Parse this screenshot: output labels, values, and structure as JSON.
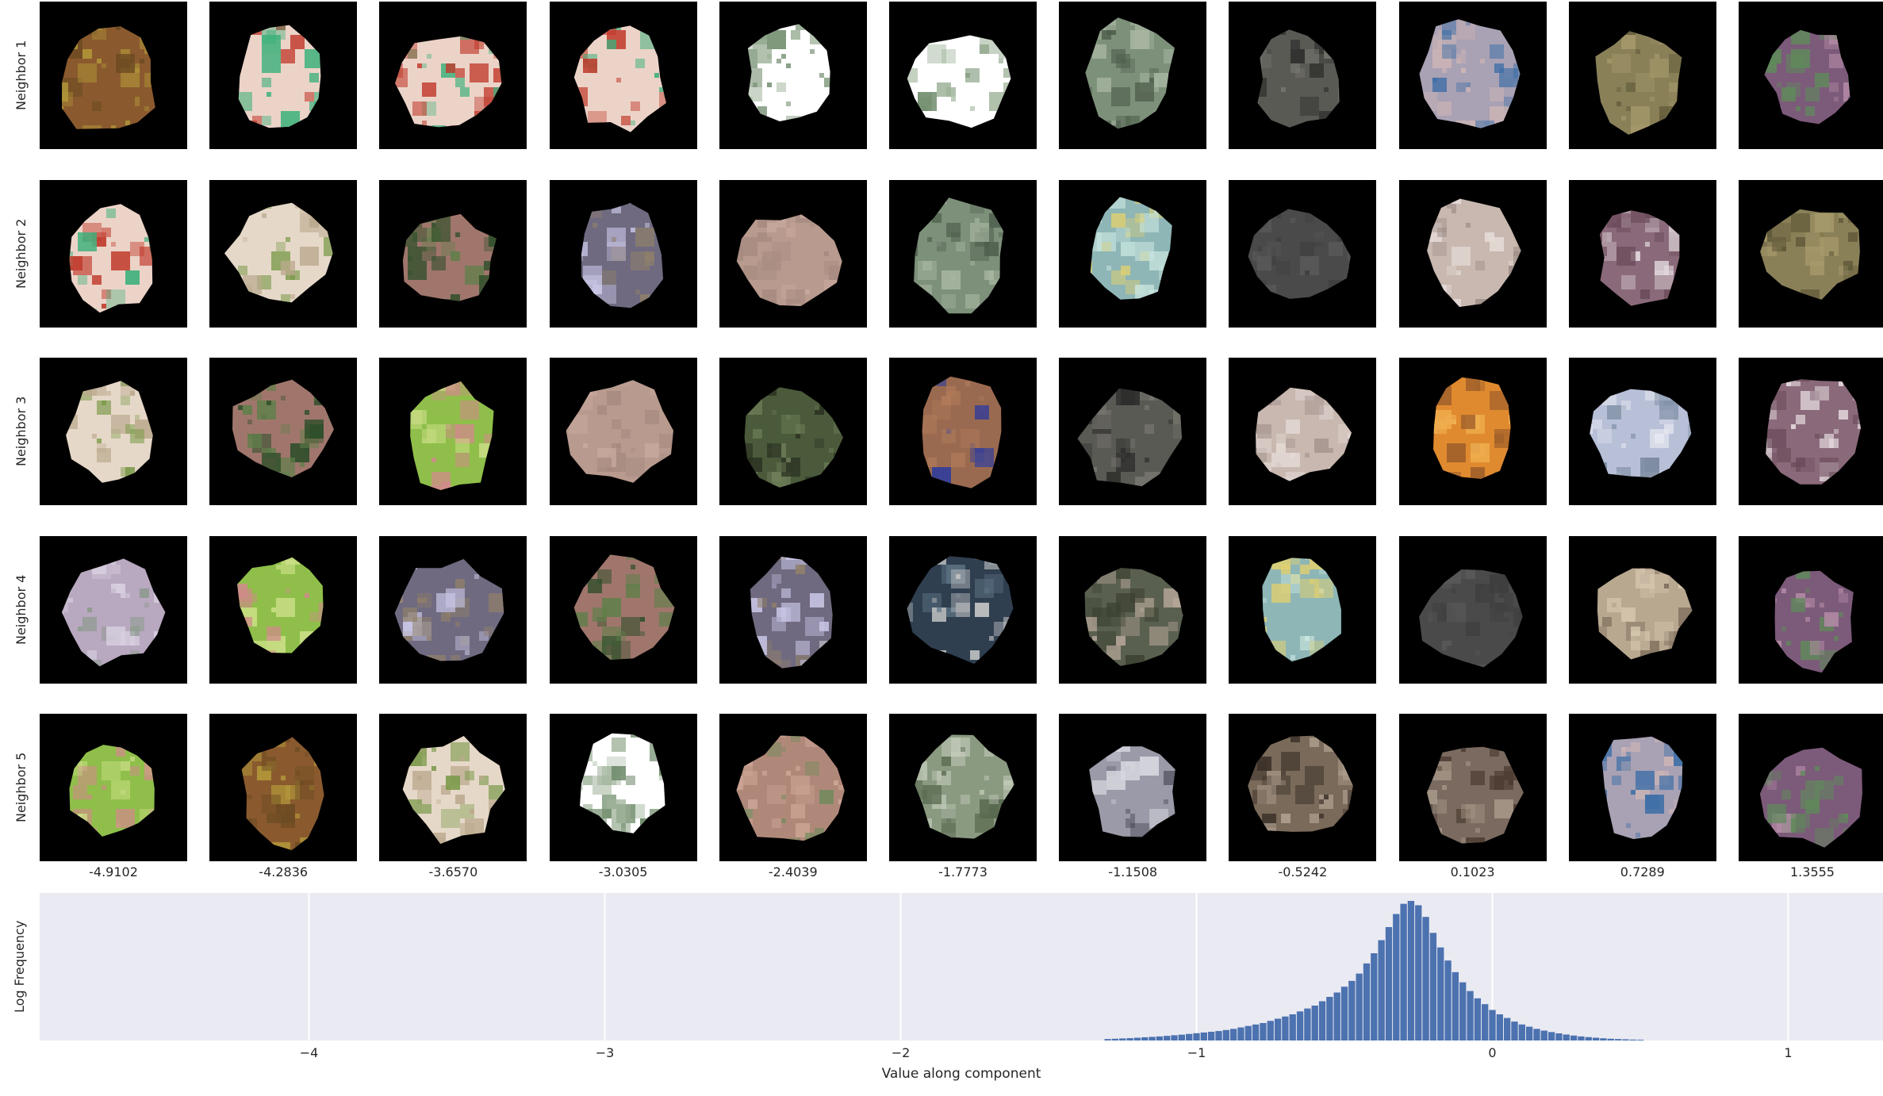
{
  "figure": {
    "row_labels": [
      "Neighbor 1",
      "Neighbor 2",
      "Neighbor 3",
      "Neighbor 4",
      "Neighbor 5"
    ],
    "column_values": [
      "-4.9102",
      "-4.2836",
      "-3.6570",
      "-3.0305",
      "-2.4039",
      "-1.7773",
      "-1.1508",
      "-0.5242",
      "0.1023",
      "0.7289",
      "1.3555"
    ],
    "tiles": [
      [
        {
          "content": "brown-yellow textured patch",
          "colors": [
            "#8a5a2e",
            "#b49a3a",
            "#6b4a22"
          ]
        },
        {
          "content": "pink cartoon figure with green",
          "colors": [
            "#ecd3c8",
            "#3bb07a",
            "#c0392b"
          ]
        },
        {
          "content": "pink cartoon figure with green",
          "colors": [
            "#ecd3c8",
            "#3bb07a",
            "#c0392b"
          ]
        },
        {
          "content": "pink cartoon figure with green",
          "colors": [
            "#ecd3c8",
            "#3bb07a",
            "#c0392b"
          ]
        },
        {
          "content": "white sky with tree branches",
          "colors": [
            "#ffffff",
            "#9fb39a",
            "#6e8a6a"
          ]
        },
        {
          "content": "white sky with tree branches",
          "colors": [
            "#ffffff",
            "#9fb39a",
            "#6e8a6a"
          ]
        },
        {
          "content": "green fence grid",
          "colors": [
            "#7d907a",
            "#a9b8a3",
            "#4e5e4c"
          ]
        },
        {
          "content": "dark gray surface",
          "colors": [
            "#5a5a55",
            "#77766f",
            "#2e2e2c"
          ]
        },
        {
          "content": "sky with clouds",
          "colors": [
            "#a9a1b4",
            "#d1b7b5",
            "#3f6fa6"
          ]
        },
        {
          "content": "olive textured patch",
          "colors": [
            "#8a8058",
            "#a69a6c",
            "#5f5838"
          ]
        },
        {
          "content": "purple-green foliage",
          "colors": [
            "#7c5a7a",
            "#5f8a5a",
            "#b38aa5"
          ]
        }
      ],
      [
        {
          "content": "pink cartoon figure with green",
          "colors": [
            "#ecd3c8",
            "#3bb07a",
            "#c0392b"
          ]
        },
        {
          "content": "pale foliage blur",
          "colors": [
            "#e6d8c8",
            "#7a9a4a",
            "#bba98e"
          ]
        },
        {
          "content": "pink and dark green leaves",
          "colors": [
            "#a0766c",
            "#2f4f2a",
            "#5f7f4a"
          ]
        },
        {
          "content": "bokeh lights on purple",
          "colors": [
            "#6f6a80",
            "#c9c6e6",
            "#8f7f6a"
          ]
        },
        {
          "content": "flat pinkish skin",
          "colors": [
            "#b89a8e",
            "#c9a99d",
            "#a68a80"
          ]
        },
        {
          "content": "green fence grid",
          "colors": [
            "#7d907a",
            "#a9b8a3",
            "#4e5e4c"
          ]
        },
        {
          "content": "cyan water reflections",
          "colors": [
            "#8fb6b6",
            "#c9e6e0",
            "#e0d070"
          ]
        },
        {
          "content": "dark gray flat surface",
          "colors": [
            "#4a4a4a",
            "#5a5a5a",
            "#3e3e3e"
          ]
        },
        {
          "content": "pale speckled surface",
          "colors": [
            "#c8b8b0",
            "#e6dcd8",
            "#9a8a84"
          ]
        },
        {
          "content": "purple-white striped fabric",
          "colors": [
            "#8a6a7a",
            "#e6dce0",
            "#6a4a5a"
          ]
        },
        {
          "content": "olive textured patch",
          "colors": [
            "#8a8058",
            "#a69a6c",
            "#5f5838"
          ]
        }
      ],
      [
        {
          "content": "pale foliage blur",
          "colors": [
            "#e6d8c8",
            "#7a9a4a",
            "#bba98e"
          ]
        },
        {
          "content": "pink and dark green leaves",
          "colors": [
            "#a0766c",
            "#2f4f2a",
            "#5f7f4a"
          ]
        },
        {
          "content": "bright green foliage with flowers",
          "colors": [
            "#8fbf4a",
            "#cfe08a",
            "#d08a8a"
          ]
        },
        {
          "content": "flat pinkish skin",
          "colors": [
            "#b89a8e",
            "#c9a99d",
            "#a68a80"
          ]
        },
        {
          "content": "dark mossy texture",
          "colors": [
            "#4a5a3a",
            "#6f7f5a",
            "#2a3020"
          ]
        },
        {
          "content": "brown with blue squares",
          "colors": [
            "#9a6a50",
            "#2a3aa0",
            "#b07a5a"
          ]
        },
        {
          "content": "dark gray surface",
          "colors": [
            "#5a5a55",
            "#77766f",
            "#2e2e2c"
          ]
        },
        {
          "content": "pale speckled surface",
          "colors": [
            "#c8b8b0",
            "#e6dcd8",
            "#9a8a84"
          ]
        },
        {
          "content": "orange sunset sky",
          "colors": [
            "#e08a30",
            "#f0b050",
            "#a0602a"
          ]
        },
        {
          "content": "pale blue-white blur",
          "colors": [
            "#b8c0d8",
            "#e6e8f0",
            "#7a8aa0"
          ]
        },
        {
          "content": "purple-white striped fabric",
          "colors": [
            "#8a6a7a",
            "#e6dce0",
            "#6a4a5a"
          ]
        }
      ],
      [
        {
          "content": "pale purple blur",
          "colors": [
            "#b8a8c0",
            "#d8d0e0",
            "#8a9a8a"
          ]
        },
        {
          "content": "bright green foliage with flowers",
          "colors": [
            "#8fbf4a",
            "#cfe08a",
            "#d08a8a"
          ]
        },
        {
          "content": "bokeh lights on purple",
          "colors": [
            "#6f6a80",
            "#c9c6e6",
            "#8f7f6a"
          ]
        },
        {
          "content": "pink and dark green leaves",
          "colors": [
            "#a0766c",
            "#2f4f2a",
            "#5f7f4a"
          ]
        },
        {
          "content": "bokeh lights on purple",
          "colors": [
            "#6f6a80",
            "#c9c6e6",
            "#8f7f6a"
          ]
        },
        {
          "content": "dark blue metallic object",
          "colors": [
            "#2f3f50",
            "#5a7080",
            "#c8c8c8"
          ]
        },
        {
          "content": "camouflage textured patch",
          "colors": [
            "#5a6050",
            "#b8a89a",
            "#3a4030"
          ]
        },
        {
          "content": "cyan water reflections",
          "colors": [
            "#8fb6b6",
            "#c9e6e0",
            "#e0d070"
          ]
        },
        {
          "content": "dark gray flat surface",
          "colors": [
            "#4a4a4a",
            "#5a5a5a",
            "#3e3e3e"
          ]
        },
        {
          "content": "beige stone texture",
          "colors": [
            "#b8a890",
            "#d8c8b0",
            "#7a6a58"
          ]
        },
        {
          "content": "purple-green foliage",
          "colors": [
            "#7c5a7a",
            "#5f8a5a",
            "#b38aa5"
          ]
        }
      ],
      [
        {
          "content": "bright green foliage with flowers",
          "colors": [
            "#8fbf4a",
            "#cfe08a",
            "#d08a8a"
          ]
        },
        {
          "content": "brown-yellow textured patch",
          "colors": [
            "#8a5a2e",
            "#b49a3a",
            "#6b4a22"
          ]
        },
        {
          "content": "pale foliage blur",
          "colors": [
            "#e6d8c8",
            "#7a9a4a",
            "#bba98e"
          ]
        },
        {
          "content": "white sky with tree branches",
          "colors": [
            "#ffffff",
            "#9fb39a",
            "#6e8a6a"
          ]
        },
        {
          "content": "pink rock with green vines",
          "colors": [
            "#b0887a",
            "#6f8a5a",
            "#d0a898"
          ]
        },
        {
          "content": "blurred grey-green foliage",
          "colors": [
            "#8a9a80",
            "#c8d0c0",
            "#5a6a50"
          ]
        },
        {
          "content": "woven grid pattern",
          "colors": [
            "#9a9aa8",
            "#d8d8e0",
            "#5a5a68"
          ]
        },
        {
          "content": "metallic spotted surface",
          "colors": [
            "#7a6a5a",
            "#b0a090",
            "#3a3028"
          ]
        },
        {
          "content": "woven brown texture",
          "colors": [
            "#7a6a60",
            "#a89a8a",
            "#4a3a30"
          ]
        },
        {
          "content": "sky with clouds",
          "colors": [
            "#a9a1b4",
            "#d1b7b5",
            "#3f6fa6"
          ]
        },
        {
          "content": "purple-green foliage",
          "colors": [
            "#7c5a7a",
            "#5f8a5a",
            "#b38aa5"
          ]
        }
      ]
    ]
  },
  "chart_data": {
    "type": "bar",
    "xlabel": "Value along component",
    "ylabel": "Log Frequency",
    "xlim": [
      -4.9102,
      1.4
    ],
    "x_ticks": [
      -4,
      -3,
      -2,
      -1,
      0,
      1
    ],
    "x_tick_labels": [
      "−4",
      "−3",
      "−2",
      "−1",
      "0",
      "1"
    ],
    "y_scale": "log",
    "grid": true,
    "bar_color": "#4c72b0",
    "background": "#eaeaf2",
    "bin_width": 0.025,
    "x": [
      -1.3,
      -1.275,
      -1.25,
      -1.225,
      -1.2,
      -1.175,
      -1.15,
      -1.125,
      -1.1,
      -1.075,
      -1.05,
      -1.025,
      -1.0,
      -0.975,
      -0.95,
      -0.925,
      -0.9,
      -0.875,
      -0.85,
      -0.825,
      -0.8,
      -0.775,
      -0.75,
      -0.725,
      -0.7,
      -0.675,
      -0.65,
      -0.625,
      -0.6,
      -0.575,
      -0.55,
      -0.525,
      -0.5,
      -0.475,
      -0.45,
      -0.425,
      -0.4,
      -0.375,
      -0.35,
      -0.325,
      -0.3,
      -0.275,
      -0.25,
      -0.225,
      -0.2,
      -0.175,
      -0.15,
      -0.125,
      -0.1,
      -0.075,
      -0.05,
      -0.025,
      0.0,
      0.025,
      0.05,
      0.075,
      0.1,
      0.125,
      0.15,
      0.175,
      0.2,
      0.225,
      0.25,
      0.275,
      0.3,
      0.325,
      0.35,
      0.375,
      0.4,
      0.425,
      0.45,
      0.475,
      0.5
    ],
    "values": [
      0.01,
      0.012,
      0.014,
      0.016,
      0.019,
      0.022,
      0.025,
      0.028,
      0.032,
      0.036,
      0.04,
      0.045,
      0.05,
      0.055,
      0.06,
      0.065,
      0.072,
      0.08,
      0.09,
      0.1,
      0.11,
      0.12,
      0.135,
      0.15,
      0.165,
      0.18,
      0.2,
      0.22,
      0.24,
      0.27,
      0.3,
      0.33,
      0.37,
      0.41,
      0.46,
      0.53,
      0.6,
      0.69,
      0.78,
      0.87,
      0.94,
      0.96,
      0.93,
      0.85,
      0.74,
      0.64,
      0.55,
      0.47,
      0.4,
      0.34,
      0.29,
      0.25,
      0.21,
      0.18,
      0.155,
      0.13,
      0.11,
      0.095,
      0.08,
      0.068,
      0.058,
      0.049,
      0.041,
      0.034,
      0.028,
      0.023,
      0.019,
      0.015,
      0.012,
      0.01,
      0.008,
      0.006,
      0.005
    ]
  }
}
